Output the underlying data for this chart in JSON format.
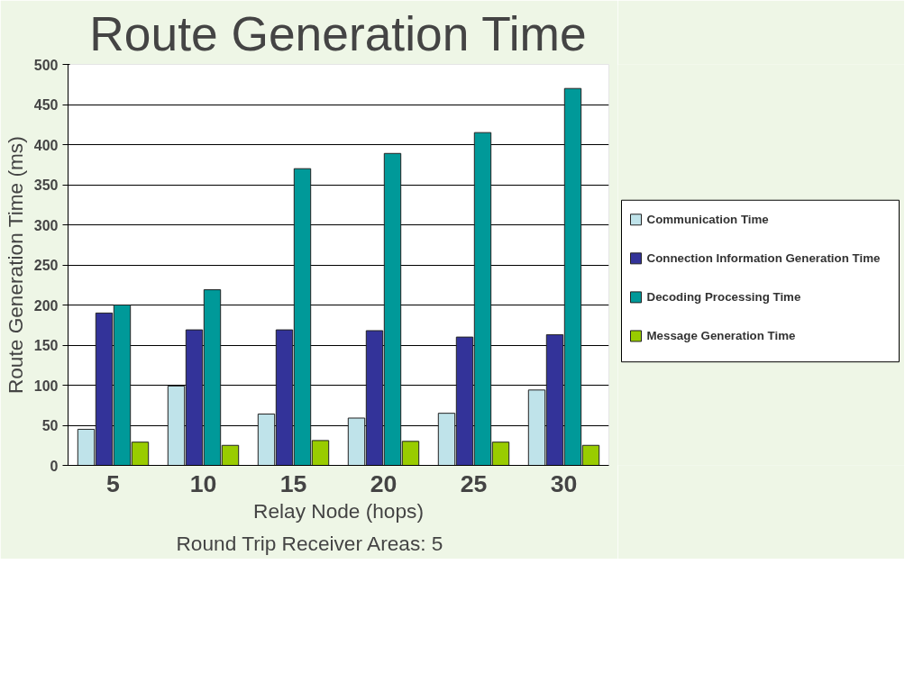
{
  "chart_data": {
    "type": "bar",
    "title": "Route Generation Time",
    "xlabel": "Relay Node (hops)",
    "ylabel": "Route Generation Time (ms)",
    "annotations": [
      "Round Trip Receiver Areas: 5"
    ],
    "categories": [
      "5",
      "10",
      "15",
      "20",
      "25",
      "30"
    ],
    "series": [
      {
        "name": "Communication Time",
        "color": "#bfe3ea",
        "values": [
          45,
          99,
          64,
          59,
          65,
          94
        ]
      },
      {
        "name": "Connection Information Generation Time",
        "color": "#333399",
        "values": [
          190,
          169,
          169,
          168,
          160,
          163
        ]
      },
      {
        "name": "Decoding Processing Time",
        "color": "#009999",
        "values": [
          200,
          219,
          370,
          389,
          415,
          470
        ]
      },
      {
        "name": "Message Generation Time",
        "color": "#99cc00",
        "values": [
          29,
          25,
          31,
          30,
          29,
          25
        ]
      }
    ],
    "ylim": [
      0,
      500
    ],
    "yticks": [
      0,
      50,
      100,
      150,
      200,
      250,
      300,
      350,
      400,
      450,
      500
    ],
    "grid": "y",
    "legend": "right"
  }
}
